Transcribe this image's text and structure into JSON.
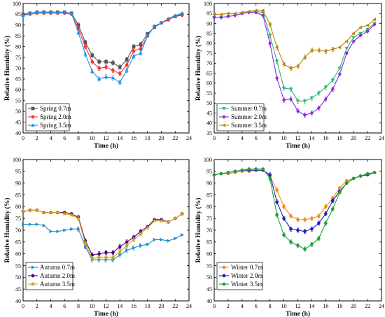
{
  "chart_data": [
    {
      "type": "line",
      "xlabel": "Time (h)",
      "ylabel": "Relative Humidity (%)",
      "xlim": [
        0,
        24
      ],
      "ylim": [
        40,
        100
      ],
      "xticks": [
        0,
        2,
        4,
        6,
        8,
        10,
        12,
        14,
        16,
        18,
        20,
        22,
        24
      ],
      "yticks": [
        40,
        45,
        50,
        55,
        60,
        65,
        70,
        75,
        80,
        85,
        90,
        95,
        100
      ],
      "legend_position": "bottom-left",
      "grid": false,
      "error_bars": true,
      "x": [
        0,
        1,
        2,
        3,
        4,
        5,
        6,
        7,
        8,
        9,
        10,
        11,
        12,
        13,
        14,
        15,
        16,
        17,
        18,
        19,
        20,
        21,
        22,
        23
      ],
      "series": [
        {
          "name": "Spring 0.7m",
          "color": "#555555",
          "marker": "square",
          "values": [
            95,
            95.5,
            96,
            96,
            96,
            96,
            96,
            95.5,
            90,
            82,
            76,
            73,
            73,
            72.5,
            70.5,
            74,
            80,
            81,
            86,
            89,
            91,
            92.5,
            94,
            95
          ]
        },
        {
          "name": "Spring 2.0m",
          "color": "#ff3030",
          "marker": "circle",
          "values": [
            94.5,
            95,
            95.5,
            95.5,
            95.5,
            95.5,
            95.5,
            95,
            88.5,
            80,
            73,
            70,
            70.5,
            69,
            67.5,
            71.5,
            78,
            79,
            85,
            89.5,
            91,
            92.5,
            94,
            94.5
          ]
        },
        {
          "name": "Spring 3.5m",
          "color": "#1e8fe6",
          "marker": "triangle-up",
          "values": [
            94.5,
            95.5,
            96,
            96,
            96,
            96,
            96,
            95.5,
            86.5,
            76.5,
            68.5,
            65,
            66,
            65.5,
            63.5,
            69,
            75.5,
            77,
            85,
            89.5,
            91,
            93,
            94.5,
            95.5
          ]
        }
      ]
    },
    {
      "type": "line",
      "xlabel": "Time (h)",
      "ylabel": "Relative Humidity (%)",
      "xlim": [
        0,
        24
      ],
      "ylim": [
        35,
        100
      ],
      "xticks": [
        0,
        2,
        4,
        6,
        8,
        10,
        12,
        14,
        16,
        18,
        20,
        22,
        24
      ],
      "yticks": [
        35,
        40,
        45,
        50,
        55,
        60,
        65,
        70,
        75,
        80,
        85,
        90,
        95,
        100
      ],
      "legend_position": "bottom-left",
      "grid": false,
      "error_bars": true,
      "x": [
        0,
        1,
        2,
        3,
        4,
        5,
        6,
        7,
        8,
        9,
        10,
        11,
        12,
        13,
        14,
        15,
        16,
        17,
        18,
        19,
        20,
        21,
        22,
        23
      ],
      "series": [
        {
          "name": "Summer 0.7m",
          "color": "#2bb673",
          "marker": "triangle-down",
          "values": [
            93,
            93,
            93.5,
            94,
            95,
            95.5,
            96,
            95.5,
            84,
            71,
            57.5,
            57,
            51,
            51,
            52.5,
            55,
            58,
            61.5,
            67.5,
            77.5,
            83,
            85,
            87,
            90
          ]
        },
        {
          "name": "Summer 2.0m",
          "color": "#8a2be2",
          "marker": "diamond",
          "values": [
            93,
            93,
            93.5,
            94,
            95,
            95.5,
            95.5,
            94,
            80,
            62.5,
            51.5,
            52,
            46,
            44,
            45,
            47.5,
            52,
            57,
            64.5,
            75,
            81,
            84,
            86,
            89.5
          ]
        },
        {
          "name": "Summer 3.5m",
          "color": "#b8860b",
          "marker": "left-triangle",
          "values": [
            94.5,
            94.5,
            95,
            95,
            95.5,
            96,
            96.5,
            96.5,
            89.5,
            78,
            69.5,
            67.5,
            68.5,
            73,
            76.5,
            76.5,
            76,
            77,
            78,
            81,
            85,
            88,
            89,
            92
          ]
        }
      ]
    },
    {
      "type": "line",
      "xlabel": "Time (h)",
      "ylabel": "Relative Humidity (%)",
      "xlim": [
        0,
        24
      ],
      "ylim": [
        40,
        100
      ],
      "xticks": [
        0,
        2,
        4,
        6,
        8,
        10,
        12,
        14,
        16,
        18,
        20,
        22,
        24
      ],
      "yticks": [
        40,
        45,
        50,
        55,
        60,
        65,
        70,
        75,
        80,
        85,
        90,
        95,
        100
      ],
      "legend_position": "bottom-left",
      "grid": false,
      "error_bars": true,
      "x": [
        0,
        1,
        2,
        3,
        4,
        5,
        6,
        7,
        8,
        9,
        10,
        11,
        12,
        13,
        14,
        15,
        16,
        17,
        18,
        19,
        20,
        21,
        22,
        23
      ],
      "series": [
        {
          "name": "Autumn 0.7m",
          "color": "#1e90c8",
          "marker": "right-triangle",
          "values": [
            72.5,
            72.5,
            72.5,
            72,
            69.5,
            69.5,
            70,
            70.5,
            70.5,
            63,
            57.5,
            57.5,
            57.5,
            57.5,
            59.5,
            61.5,
            62.5,
            63.5,
            64,
            66,
            66,
            65.5,
            66.5,
            68
          ]
        },
        {
          "name": "Autumn 2.0m",
          "color": "#4b0082",
          "marker": "circle",
          "values": [
            78,
            78.5,
            78.5,
            77.5,
            77.5,
            77.5,
            77.5,
            77,
            75.5,
            65.5,
            59.5,
            60,
            60.5,
            60.5,
            63,
            65,
            67,
            69.5,
            71.5,
            74.5,
            74.5,
            73.5,
            75,
            77
          ]
        },
        {
          "name": "Autumn 3.5m",
          "color": "#d4a017",
          "marker": "star",
          "values": [
            78,
            78.5,
            78.5,
            77.5,
            77.5,
            77.5,
            77,
            76.5,
            75,
            64.5,
            58,
            58.5,
            58.5,
            58.5,
            61,
            63.5,
            66,
            68.5,
            71,
            74,
            74,
            73.5,
            75,
            77
          ]
        }
      ]
    },
    {
      "type": "line",
      "xlabel": "Time (h)",
      "ylabel": "Relative Humidity (%)",
      "xlim": [
        0,
        24
      ],
      "ylim": [
        40,
        100
      ],
      "xticks": [
        0,
        2,
        4,
        6,
        8,
        10,
        12,
        14,
        16,
        18,
        20,
        22,
        24
      ],
      "yticks": [
        40,
        45,
        50,
        55,
        60,
        65,
        70,
        75,
        80,
        85,
        90,
        95,
        100
      ],
      "legend_position": "bottom-left",
      "grid": false,
      "error_bars": true,
      "x": [
        0,
        1,
        2,
        3,
        4,
        5,
        6,
        7,
        8,
        9,
        10,
        11,
        12,
        13,
        14,
        15,
        16,
        17,
        18,
        19,
        20,
        21,
        22,
        23
      ],
      "series": [
        {
          "name": "Winter 0.7m",
          "color": "#f28c1e",
          "marker": "circle",
          "values": [
            93.5,
            94,
            94,
            94.5,
            95,
            95,
            95.5,
            95.5,
            93,
            87,
            80,
            76,
            74.5,
            74.5,
            75,
            76,
            80,
            83.5,
            88,
            91,
            92,
            93,
            94,
            94.5
          ]
        },
        {
          "name": "Winter 2.0m",
          "color": "#1f1fbf",
          "marker": "circle",
          "values": [
            93.5,
            94,
            94.5,
            95,
            95.5,
            95.5,
            95.5,
            95.5,
            93.5,
            82,
            75,
            70.5,
            70,
            69.5,
            70.5,
            73,
            77,
            82.5,
            86.5,
            90,
            92,
            93,
            93.5,
            94.5
          ]
        },
        {
          "name": "Winter 3.5m",
          "color": "#1f9e3e",
          "marker": "circle",
          "values": [
            93.5,
            94,
            94.5,
            95,
            95.5,
            96,
            96,
            96,
            92,
            76.5,
            68,
            65,
            63.5,
            62,
            64,
            66.5,
            73,
            79,
            86,
            90,
            92,
            93,
            94,
            94.5
          ]
        }
      ]
    }
  ]
}
